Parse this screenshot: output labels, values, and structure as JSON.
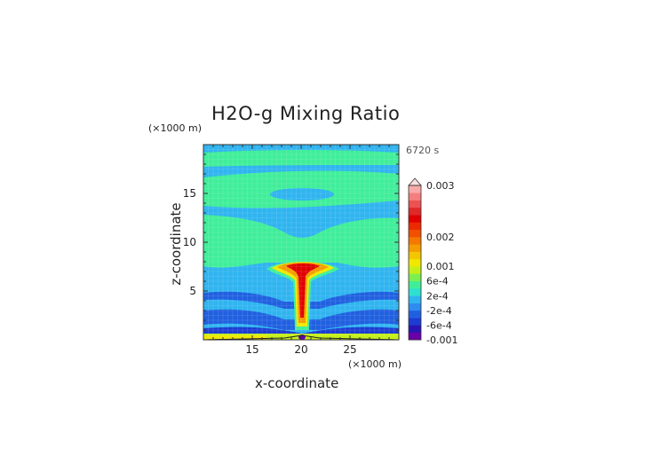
{
  "chart_data": {
    "type": "heatmap",
    "title": "H2O-g Mixing Ratio",
    "xlabel": "x-coordinate",
    "ylabel": "z-coordinate",
    "x_unit": "(×1000 m)",
    "y_unit": "(×1000 m)",
    "time_label": "6720 s",
    "xlim": [
      10,
      30
    ],
    "ylim": [
      0,
      20
    ],
    "x_ticks": [
      "15",
      "20",
      "25"
    ],
    "y_ticks": [
      "5",
      "10",
      "15"
    ],
    "colorbar": {
      "levels": [
        "-0.001",
        "-6e-4",
        "-2e-4",
        "2e-4",
        "6e-4",
        "0.001",
        "0.002",
        "0.003"
      ],
      "colors": [
        "#6a00a8",
        "#2a14b4",
        "#1c3cd2",
        "#2060e0",
        "#2e8cf0",
        "#30b4f0",
        "#2ee0d0",
        "#40ee9a",
        "#7cf050",
        "#c4f018",
        "#f0e800",
        "#f2c600",
        "#f49c00",
        "#f47800",
        "#f05000",
        "#ec2a00",
        "#e00000",
        "#e02828",
        "#ec5252",
        "#f47e7e",
        "#f8aaaa"
      ]
    },
    "regions": [
      {
        "x": [
          10,
          30
        ],
        "z": [
          0,
          20
        ],
        "level": -0.0002
      },
      {
        "x": [
          10,
          30
        ],
        "z": [
          17.5,
          19.3
        ],
        "level": 0.0002
      },
      {
        "x": [
          10,
          30
        ],
        "z": [
          13,
          16.5
        ],
        "level": 0.0002
      },
      {
        "x": [
          10,
          30
        ],
        "z": [
          6,
          11.5
        ],
        "level": 0.0002
      },
      {
        "x": [
          10,
          30
        ],
        "z": [
          0,
          0.5
        ],
        "level": 0.0006
      },
      {
        "x": [
          17,
          23
        ],
        "z": [
          0.5,
          8
        ],
        "level": 0.002
      }
    ]
  }
}
